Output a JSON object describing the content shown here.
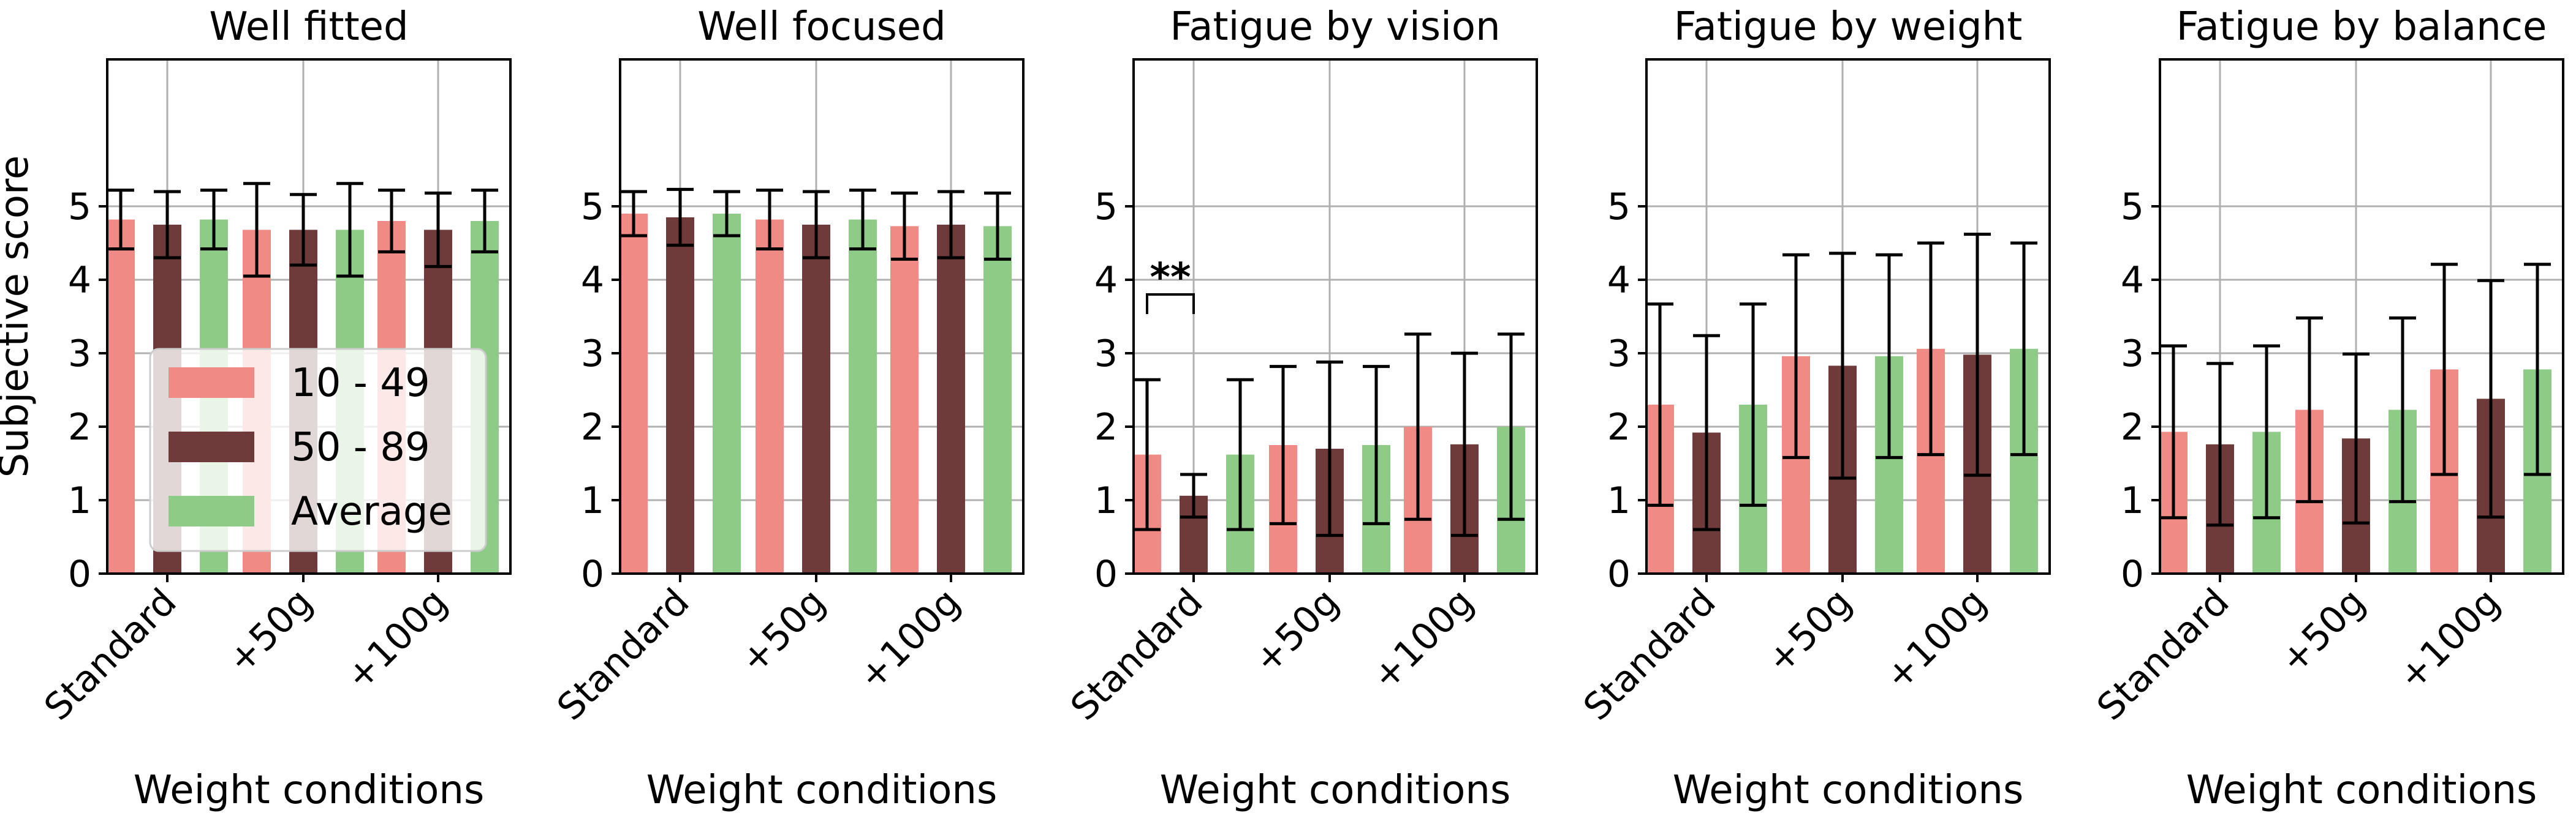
{
  "chart_data": {
    "type": "bar",
    "categories": [
      "Standard",
      "+50g",
      "+100g"
    ],
    "xlabel": "Weight conditions",
    "ylabel": "Subjective score",
    "ylim": [
      0,
      7
    ],
    "yticks": [
      0,
      1,
      2,
      3,
      4,
      5
    ],
    "grid": true,
    "legend": {
      "entries": [
        "10 - 49",
        "50 - 89",
        "Average"
      ],
      "placement": "lower-left of first panel"
    },
    "colors": {
      "10 - 49": "#f08a85",
      "50 - 89": "#6f3a3a",
      "Average": "#8ecb86"
    },
    "panels": [
      {
        "title": "Well fitted",
        "series": [
          {
            "name": "10 - 49",
            "values": [
              4.82,
              4.68,
              4.8
            ],
            "errors": [
              0.4,
              0.63,
              0.42
            ]
          },
          {
            "name": "50 - 89",
            "values": [
              4.75,
              4.68,
              4.68
            ],
            "errors": [
              0.45,
              0.48,
              0.5
            ]
          },
          {
            "name": "Average",
            "values": [
              4.82,
              4.68,
              4.8
            ],
            "errors": [
              0.4,
              0.63,
              0.42
            ]
          }
        ]
      },
      {
        "title": "Well focused",
        "series": [
          {
            "name": "10 - 49",
            "values": [
              4.9,
              4.82,
              4.73
            ],
            "errors": [
              0.3,
              0.4,
              0.45
            ]
          },
          {
            "name": "50 - 89",
            "values": [
              4.85,
              4.75,
              4.75
            ],
            "errors": [
              0.38,
              0.45,
              0.45
            ]
          },
          {
            "name": "Average",
            "values": [
              4.9,
              4.82,
              4.73
            ],
            "errors": [
              0.3,
              0.4,
              0.45
            ]
          }
        ]
      },
      {
        "title": "Fatigue by vision",
        "series": [
          {
            "name": "10 - 49",
            "values": [
              1.62,
              1.75,
              2.0
            ],
            "errors": [
              1.02,
              1.07,
              1.26
            ]
          },
          {
            "name": "50 - 89",
            "values": [
              1.06,
              1.7,
              1.76
            ],
            "errors": [
              0.29,
              1.18,
              1.24
            ]
          },
          {
            "name": "Average",
            "values": [
              1.62,
              1.75,
              2.0
            ],
            "errors": [
              1.02,
              1.07,
              1.26
            ]
          }
        ],
        "annotation": {
          "text": "**",
          "between": [
            "10 - 49",
            "50 - 89"
          ],
          "category": "Standard"
        }
      },
      {
        "title": "Fatigue by weight",
        "series": [
          {
            "name": "10 - 49",
            "values": [
              2.3,
              2.96,
              3.06
            ],
            "errors": [
              1.37,
              1.38,
              1.44
            ]
          },
          {
            "name": "50 - 89",
            "values": [
              1.92,
              2.83,
              2.98
            ],
            "errors": [
              1.32,
              1.53,
              1.64
            ]
          },
          {
            "name": "Average",
            "values": [
              2.3,
              2.96,
              3.06
            ],
            "errors": [
              1.37,
              1.38,
              1.44
            ]
          }
        ]
      },
      {
        "title": "Fatigue by balance",
        "series": [
          {
            "name": "10 - 49",
            "values": [
              1.93,
              2.23,
              2.78
            ],
            "errors": [
              1.17,
              1.25,
              1.43
            ]
          },
          {
            "name": "50 - 89",
            "values": [
              1.76,
              1.84,
              2.38
            ],
            "errors": [
              1.1,
              1.15,
              1.61
            ]
          },
          {
            "name": "Average",
            "values": [
              1.93,
              2.23,
              2.78
            ],
            "errors": [
              1.17,
              1.25,
              1.43
            ]
          }
        ]
      }
    ]
  }
}
